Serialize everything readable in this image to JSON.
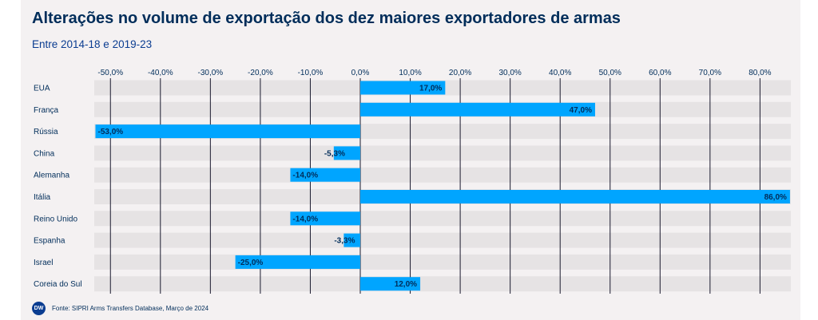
{
  "title": "Alterações no volume de exportação dos dez maiores exportadores de armas",
  "subtitle": "Entre 2014-18 e 2019-23",
  "source": "Fonte: SIPRI Arms Transfers Database, Março de 2024",
  "logo_text": "DW",
  "colors": {
    "bar": "#00a5ff",
    "title": "#002d5a",
    "background": "#f4f1f2",
    "band": "#e6e3e4",
    "grid": "#1a1a2e"
  },
  "chart_data": {
    "type": "bar",
    "orientation": "horizontal",
    "title": "Alterações no volume de exportação dos dez maiores exportadores de armas",
    "subtitle": "Entre 2014-18 e 2019-23",
    "xlim": [
      -53,
      86
    ],
    "xticks": [
      -50,
      -40,
      -30,
      -20,
      -10,
      0,
      10,
      20,
      30,
      40,
      50,
      60,
      70,
      80
    ],
    "tick_labels": [
      "-50,0%",
      "-40,0%",
      "-30,0%",
      "-20,0%",
      "-10,0%",
      "0,0%",
      "10,0%",
      "20,0%",
      "30,0%",
      "40,0%",
      "50,0%",
      "60,0%",
      "70,0%",
      "80,0%"
    ],
    "axis_position": "top",
    "grid": true,
    "categories": [
      "EUA",
      "França",
      "Rússia",
      "China",
      "Alemanha",
      "Itália",
      "Reino Unido",
      "Espanha",
      "Israel",
      "Coreia do Sul"
    ],
    "values": [
      17.0,
      47.0,
      -53.0,
      -5.3,
      -14.0,
      86.0,
      -14.0,
      -3.3,
      -25.0,
      12.0
    ],
    "value_labels": [
      "17,0%",
      "47,0%",
      "-53,0%",
      "-5,3%",
      "-14,0%",
      "86,0%",
      "-14,0%",
      "-3,3%",
      "-25,0%",
      "12,0%"
    ]
  }
}
